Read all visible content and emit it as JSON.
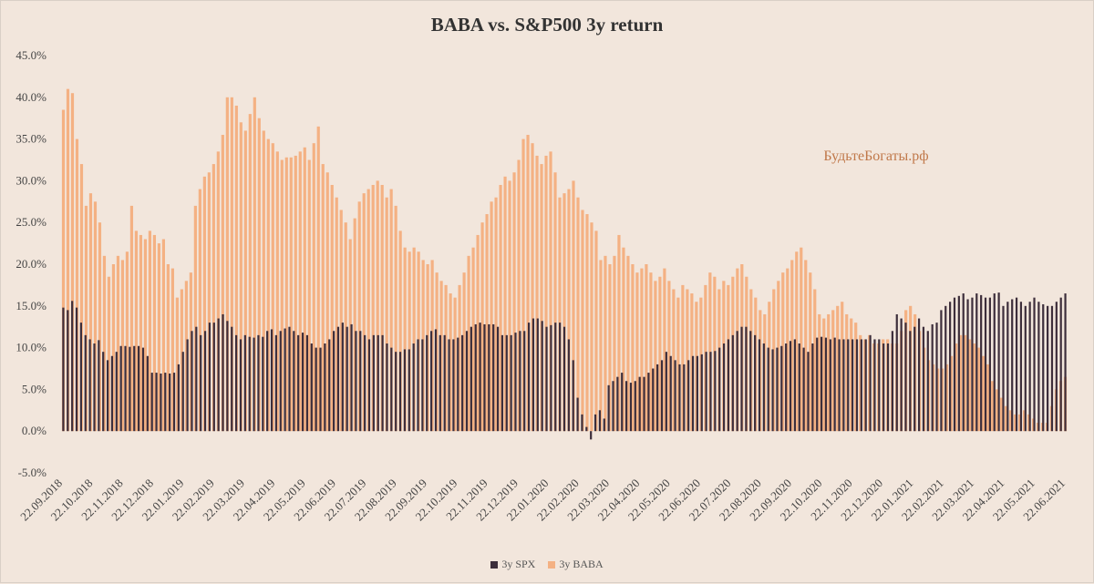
{
  "chart_data": {
    "type": "bar",
    "title": "BABA vs. S&P500 3y return",
    "watermark": "БудьтеБогаты.рф",
    "ylim": [
      -5,
      45
    ],
    "y_ticks": [
      "-5.0%",
      "0.0%",
      "5.0%",
      "10.0%",
      "15.0%",
      "20.0%",
      "25.0%",
      "30.0%",
      "35.0%",
      "40.0%",
      "45.0%"
    ],
    "x_ticks": [
      "22.09.2018",
      "22.10.2018",
      "22.11.2018",
      "22.12.2018",
      "22.01.2019",
      "22.02.2019",
      "22.03.2019",
      "22.04.2019",
      "22.05.2019",
      "22.06.2019",
      "22.07.2019",
      "22.08.2019",
      "22.09.2019",
      "22.10.2019",
      "22.11.2019",
      "22.12.2019",
      "22.01.2020",
      "22.02.2020",
      "22.03.2020",
      "22.04.2020",
      "22.05.2020",
      "22.06.2020",
      "22.07.2020",
      "22.08.2020",
      "22.09.2020",
      "22.10.2020",
      "22.11.2020",
      "22.12.2020",
      "22.01.2021",
      "22.02.2021",
      "22.03.2021",
      "22.04.2021",
      "22.05.2021",
      "22.06.2021"
    ],
    "grid": false,
    "legend_position": "bottom",
    "colors": {
      "spx": "#3d2e3b",
      "baba": "#f4b183",
      "background": "#f2e6dc"
    },
    "series": [
      {
        "name": "3y SPX",
        "values": [
          14.8,
          14.5,
          15.6,
          14.8,
          13.0,
          11.5,
          11.0,
          10.5,
          10.9,
          9.5,
          8.5,
          9.0,
          9.5,
          10.2,
          10.2,
          10.1,
          10.2,
          10.2,
          10.0,
          9.0,
          7.0,
          7.0,
          6.9,
          7.0,
          6.9,
          7.0,
          8.0,
          9.5,
          11.0,
          12.0,
          12.5,
          11.5,
          12.0,
          13.0,
          13.0,
          13.5,
          14.0,
          13.2,
          12.5,
          11.5,
          11.0,
          11.5,
          11.3,
          11.2,
          11.5,
          11.3,
          12.0,
          12.2,
          11.5,
          12.0,
          12.3,
          12.5,
          12.0,
          11.5,
          11.8,
          11.5,
          10.5,
          10.0,
          10.0,
          10.5,
          11.0,
          12.0,
          12.5,
          13.0,
          12.5,
          12.8,
          12.0,
          12.0,
          11.5,
          11.0,
          11.5,
          11.5,
          11.5,
          10.5,
          10.0,
          9.5,
          9.5,
          9.8,
          9.8,
          10.5,
          11.0,
          11.0,
          11.5,
          12.0,
          12.2,
          11.5,
          11.5,
          11.0,
          11.0,
          11.2,
          11.5,
          12.0,
          12.5,
          12.8,
          13.0,
          12.8,
          12.8,
          12.8,
          12.5,
          11.5,
          11.5,
          11.5,
          11.8,
          12.0,
          12.0,
          13.0,
          13.5,
          13.5,
          13.2,
          12.5,
          12.7,
          13.0,
          13.0,
          12.5,
          11.0,
          8.5,
          4.0,
          2.0,
          0.5,
          -1.0,
          2.0,
          2.5,
          1.5,
          5.5,
          6.0,
          6.5,
          7.0,
          6.0,
          5.8,
          6.0,
          6.5,
          6.5,
          7.0,
          7.5,
          8.0,
          8.5,
          9.5,
          9.0,
          8.5,
          8.0,
          8.0,
          8.5,
          9.0,
          9.0,
          9.2,
          9.5,
          9.5,
          9.6,
          10.0,
          10.5,
          11.0,
          11.5,
          12.0,
          12.5,
          12.5,
          12.0,
          11.5,
          11.0,
          10.5,
          10.0,
          9.8,
          10.0,
          10.2,
          10.5,
          10.8,
          11.0,
          10.5,
          10.0,
          9.5,
          10.5,
          11.2,
          11.3,
          11.2,
          11.0,
          11.2,
          11.0,
          11.0,
          11.0,
          11.0,
          11.0,
          11.0,
          11.0,
          11.5,
          11.0,
          11.0,
          10.5,
          10.5,
          12.0,
          14.0,
          13.5,
          13.0,
          12.0,
          12.5,
          13.5,
          12.5,
          12.0,
          12.8,
          13.0,
          14.5,
          15.0,
          15.5,
          16.0,
          16.2,
          16.5,
          15.8,
          16.0,
          16.5,
          16.3,
          16.0,
          16.0,
          16.5,
          16.6,
          15.0,
          15.5,
          15.8,
          16.0,
          15.5,
          15.0,
          15.5,
          16.0,
          15.5,
          15.2,
          15.0,
          15.0,
          15.5,
          16.0,
          16.5
        ]
      },
      {
        "name": "3y BABA",
        "values": [
          38.5,
          41.0,
          40.5,
          35.0,
          32.0,
          27.0,
          28.5,
          27.5,
          25.0,
          21.0,
          18.5,
          20.0,
          21.0,
          20.5,
          21.5,
          27.0,
          24.0,
          23.5,
          23.0,
          24.0,
          23.5,
          22.5,
          23.0,
          20.0,
          19.5,
          16.0,
          17.0,
          18.0,
          19.0,
          27.0,
          29.0,
          30.5,
          31.0,
          32.0,
          33.5,
          35.5,
          40.0,
          40.0,
          39.0,
          37.0,
          36.0,
          38.0,
          40.0,
          37.5,
          36.0,
          35.0,
          34.5,
          33.5,
          32.5,
          32.8,
          32.8,
          33.0,
          33.5,
          34.0,
          32.5,
          34.5,
          36.5,
          32.0,
          31.0,
          29.5,
          28.0,
          26.5,
          25.0,
          23.0,
          25.5,
          27.5,
          28.5,
          29.0,
          29.5,
          30.0,
          29.5,
          28.0,
          29.0,
          27.0,
          24.0,
          22.0,
          21.5,
          22.0,
          21.5,
          20.5,
          20.0,
          20.5,
          19.0,
          18.0,
          17.5,
          16.5,
          16.0,
          17.5,
          19.0,
          21.0,
          22.0,
          23.5,
          25.0,
          26.0,
          27.5,
          28.0,
          29.5,
          30.5,
          30.0,
          31.0,
          32.5,
          35.0,
          35.5,
          34.5,
          33.0,
          32.0,
          33.0,
          33.5,
          31.0,
          28.0,
          28.5,
          29.0,
          30.0,
          28.0,
          26.5,
          26.0,
          25.0,
          24.0,
          20.5,
          21.0,
          20.0,
          21.0,
          23.5,
          22.0,
          21.0,
          20.0,
          19.0,
          19.5,
          20.0,
          19.0,
          18.0,
          18.5,
          19.5,
          18.0,
          17.0,
          16.0,
          17.5,
          17.0,
          16.5,
          15.5,
          16.0,
          17.5,
          19.0,
          18.5,
          17.0,
          18.0,
          17.5,
          18.5,
          19.5,
          20.0,
          18.5,
          17.0,
          16.0,
          14.5,
          14.0,
          15.5,
          17.0,
          18.0,
          19.0,
          19.5,
          20.5,
          21.5,
          22.0,
          20.5,
          19.0,
          17.0,
          14.0,
          13.5,
          14.0,
          14.5,
          15.0,
          15.5,
          14.0,
          13.5,
          13.0,
          11.5,
          11.0,
          11.5,
          10.5,
          10.5,
          11.0,
          11.0,
          10.5,
          10.5,
          12.0,
          14.5,
          15.0,
          14.0,
          12.0,
          10.0,
          8.5,
          8.0,
          7.5,
          7.5,
          8.0,
          9.0,
          10.5,
          11.5,
          11.5,
          11.0,
          10.5,
          10.0,
          9.0,
          8.0,
          6.0,
          5.0,
          4.0,
          3.0,
          2.5,
          2.0,
          2.0,
          2.5,
          2.0,
          1.5,
          1.0,
          1.0,
          1.0,
          3.0,
          5.0,
          6.0,
          6.5
        ]
      }
    ]
  }
}
